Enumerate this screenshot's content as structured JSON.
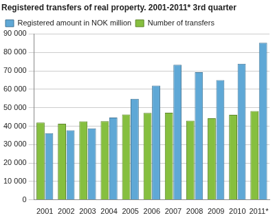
{
  "chart_data": {
    "type": "bar",
    "title": "Registered transfers of real property. 2001-2011* 3rd quarter",
    "categories": [
      "2001",
      "2002",
      "2003",
      "2004",
      "2005",
      "2006",
      "2007",
      "2008",
      "2009",
      "2010",
      "2011*"
    ],
    "series": [
      {
        "name": "Number of transfers",
        "color": "#86bf3f",
        "values": [
          42000,
          41300,
          42600,
          42700,
          46300,
          47200,
          47300,
          43000,
          44300,
          46200,
          48200
        ]
      },
      {
        "name": "Registered amount in NOK million",
        "color": "#5fa8d6",
        "values": [
          36200,
          37800,
          38800,
          44700,
          54800,
          62000,
          73300,
          69300,
          65000,
          73800,
          85200
        ]
      }
    ],
    "ylim": [
      0,
      90000
    ],
    "yticks": [
      0,
      {
        "value": 10000,
        "label": "10 000"
      },
      {
        "value": 20000,
        "label": "20 000"
      },
      {
        "value": 30000,
        "label": "30 000"
      },
      {
        "value": 40000,
        "label": "40 000"
      },
      {
        "value": 50000,
        "label": "50 000"
      },
      {
        "value": 60000,
        "label": "60 000"
      },
      {
        "value": 70000,
        "label": "70 000"
      },
      {
        "value": 80000,
        "label": "80 000"
      },
      {
        "value": 90000,
        "label": "90 000"
      }
    ],
    "grid": true,
    "legend": "top-left"
  }
}
